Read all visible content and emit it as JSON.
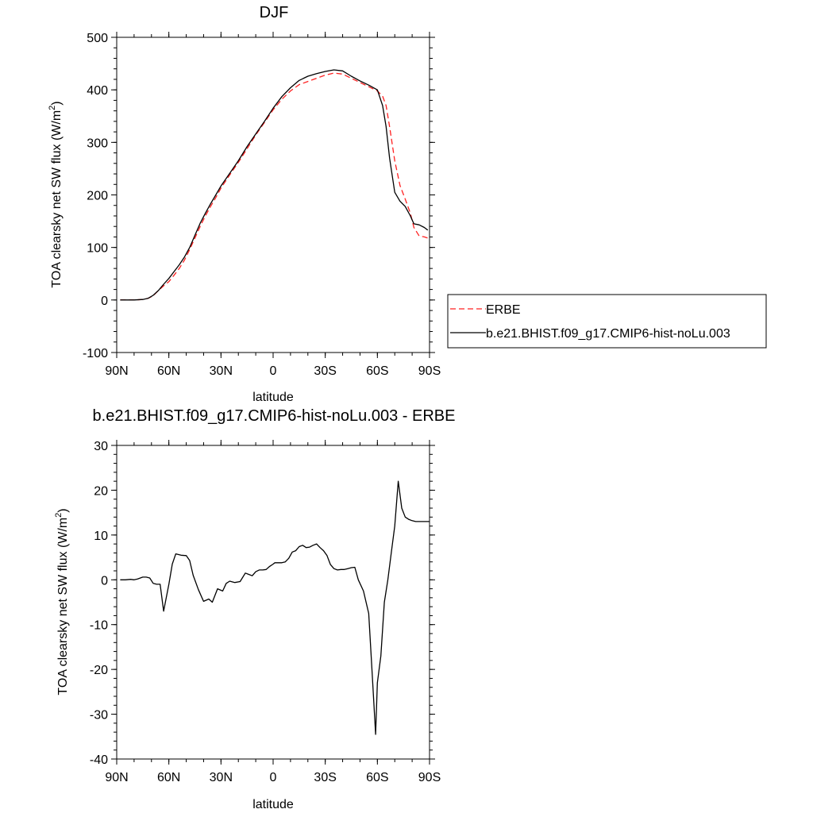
{
  "colors": {
    "erbe": "#ff2020",
    "model": "#000000"
  },
  "chart_data": [
    {
      "type": "line",
      "title": "DJF",
      "xlabel": "latitude",
      "ylabel": "TOA clearsky net SW flux (W/m2)",
      "ylabel_main": "TOA clearsky net SW flux (W/m",
      "ylabel_sup": "2",
      "ylabel_end": ")",
      "xlim": [
        -90,
        90
      ],
      "ylim": [
        -100,
        500
      ],
      "xticks": [
        -90,
        -60,
        -30,
        0,
        30,
        60,
        90
      ],
      "xtick_labels": [
        "90N",
        "60N",
        "30N",
        "0",
        "30S",
        "60S",
        "90S"
      ],
      "yticks": [
        -100,
        0,
        100,
        200,
        300,
        400,
        500
      ],
      "ytick_labels": [
        "-100",
        "0",
        "100",
        "200",
        "300",
        "400",
        "500"
      ],
      "legend_position": "right",
      "series": [
        {
          "name": "ERBE",
          "style": "dashed",
          "x": [
            -88,
            -85,
            -80,
            -75,
            -72,
            -69,
            -66,
            -63,
            -60,
            -57,
            -54,
            -51,
            -48,
            -45,
            -42,
            -39,
            -36,
            -33,
            -30,
            -25,
            -20,
            -15,
            -10,
            -5,
            0,
            5,
            10,
            15,
            20,
            25,
            30,
            35,
            40,
            45,
            50,
            55,
            60,
            63,
            65,
            67,
            70,
            73,
            76,
            79,
            81,
            84,
            87,
            89
          ],
          "y": [
            0,
            0,
            0,
            1,
            3,
            8,
            18,
            27,
            35,
            47,
            60,
            76,
            96,
            118,
            140,
            160,
            178,
            195,
            213,
            238,
            262,
            288,
            314,
            338,
            362,
            382,
            398,
            410,
            416,
            422,
            428,
            432,
            430,
            422,
            414,
            406,
            398,
            388,
            370,
            330,
            265,
            218,
            192,
            165,
            138,
            122,
            120,
            118
          ]
        },
        {
          "name": "b.e21.BHIST.f09_g17.CMIP6-hist-noLu.003",
          "style": "solid",
          "x": [
            -88,
            -85,
            -80,
            -75,
            -72,
            -69,
            -66,
            -63,
            -60,
            -57,
            -54,
            -51,
            -48,
            -45,
            -42,
            -39,
            -36,
            -33,
            -30,
            -25,
            -20,
            -15,
            -10,
            -5,
            0,
            5,
            10,
            15,
            20,
            25,
            30,
            35,
            40,
            45,
            50,
            55,
            60,
            63,
            65,
            67,
            70,
            73,
            76,
            79,
            81,
            84,
            87,
            89
          ],
          "y": [
            0,
            0,
            0,
            1,
            3,
            9,
            18,
            30,
            41,
            54,
            67,
            82,
            100,
            123,
            146,
            165,
            183,
            200,
            217,
            241,
            265,
            292,
            316,
            340,
            365,
            387,
            404,
            418,
            426,
            431,
            435,
            438,
            436,
            426,
            417,
            409,
            400,
            370,
            330,
            270,
            205,
            188,
            178,
            160,
            145,
            143,
            138,
            133
          ]
        }
      ]
    },
    {
      "type": "line",
      "title": "b.e21.BHIST.f09_g17.CMIP6-hist-noLu.003 - ERBE",
      "xlabel": "latitude",
      "ylabel": "TOA clearsky net SW flux (W/m2)",
      "ylabel_main": "TOA clearsky net SW flux (W/m",
      "ylabel_sup": "2",
      "ylabel_end": ")",
      "xlim": [
        -90,
        90
      ],
      "ylim": [
        -40,
        30
      ],
      "xticks": [
        -90,
        -60,
        -30,
        0,
        30,
        60,
        90
      ],
      "xtick_labels": [
        "90N",
        "60N",
        "30N",
        "0",
        "30S",
        "60S",
        "90S"
      ],
      "yticks": [
        -40,
        -30,
        -20,
        -10,
        0,
        10,
        20,
        30
      ],
      "ytick_labels": [
        "-40",
        "-30",
        "-20",
        "-10",
        "0",
        "10",
        "20",
        "30"
      ],
      "series": [
        {
          "name": "",
          "style": "solid",
          "x": [
            -88,
            -85,
            -82,
            -80,
            -78,
            -75,
            -73,
            -71,
            -69,
            -67,
            -65,
            -63,
            -60,
            -58,
            -56,
            -53,
            -50,
            -48,
            -46,
            -43,
            -40,
            -37,
            -35,
            -32,
            -29,
            -27,
            -25,
            -22,
            -19,
            -16,
            -14,
            -12,
            -10,
            -8,
            -6,
            -4,
            -2,
            0,
            1,
            3,
            5,
            7,
            9,
            11,
            13,
            15,
            17,
            19,
            21,
            23,
            25,
            27,
            29,
            31,
            33,
            35,
            37,
            39,
            41,
            43,
            45,
            47,
            49,
            52,
            55,
            57,
            59,
            60,
            62,
            64,
            66,
            68,
            70,
            72,
            74,
            76,
            78,
            80,
            82,
            84,
            86,
            88,
            90
          ],
          "y": [
            0,
            0,
            0.1,
            0,
            0.2,
            0.6,
            0.6,
            0.4,
            -0.8,
            -1,
            -1,
            -7,
            -1,
            3.5,
            5.8,
            5.5,
            5.4,
            4.3,
            1,
            -2.2,
            -4.8,
            -4.3,
            -5,
            -2,
            -2.5,
            -0.8,
            -0.3,
            -0.6,
            -0.4,
            1.5,
            1.2,
            0.9,
            1.8,
            2.2,
            2.2,
            2.3,
            3,
            3.5,
            3.8,
            3.8,
            3.8,
            4,
            4.8,
            6.2,
            6.5,
            7.4,
            7.7,
            7.2,
            7.3,
            7.7,
            8,
            7.2,
            6.5,
            5.4,
            3.4,
            2.5,
            2.2,
            2.3,
            2.3,
            2.5,
            2.7,
            2.8,
            0,
            -2.5,
            -7.5,
            -21,
            -34.5,
            -23,
            -17,
            -5,
            0,
            6,
            12,
            22,
            16,
            14,
            13.5,
            13.2,
            13,
            13,
            13,
            13,
            13
          ]
        }
      ]
    }
  ]
}
